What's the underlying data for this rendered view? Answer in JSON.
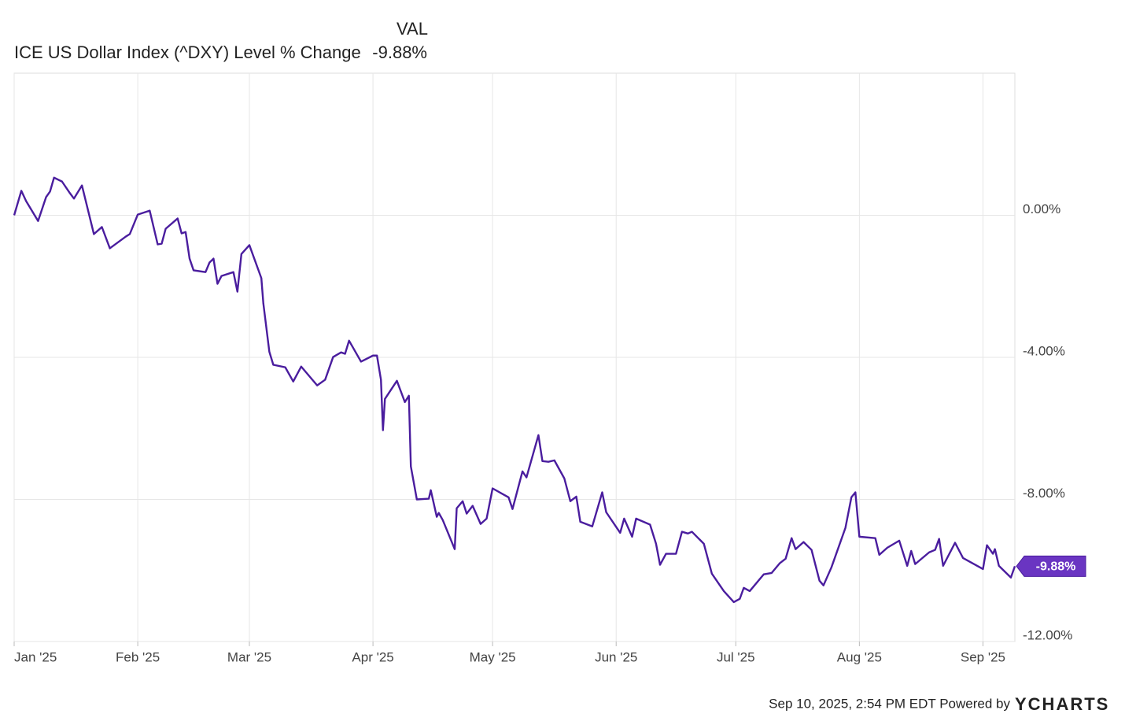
{
  "chart_data": {
    "type": "line",
    "column_header": "VAL",
    "footer": "Sep 10, 2025, 2:54 PM EDT Powered by",
    "brand": "YCHARTS",
    "series": [
      {
        "name": "ICE US Dollar Index (^DXY) Level % Change",
        "color": "#4a1d9e",
        "last_label": "-9.88%",
        "x": [
          0,
          1.8,
          3,
          6,
          8,
          9,
          10,
          12,
          14,
          15,
          17,
          20,
          22,
          24,
          28,
          29,
          31,
          34,
          36,
          37,
          38,
          41,
          42,
          43,
          44,
          45,
          48,
          49,
          50,
          51,
          52,
          55,
          56,
          57,
          59,
          62,
          62.5,
          64,
          65,
          68,
          70,
          72,
          76,
          78,
          80,
          82,
          83,
          84,
          87,
          90,
          91,
          92,
          92.5,
          93,
          96,
          98,
          99,
          99.5,
          101,
          104,
          104.5,
          106,
          106.5,
          107.5,
          110.5,
          111,
          112.5,
          113.5,
          115,
          117,
          118.5,
          120,
          124,
          125,
          127.5,
          128.5,
          131.5,
          132.5,
          134,
          135.5,
          138,
          139.5,
          141,
          142,
          145,
          147.5,
          148.5,
          152,
          153,
          155,
          156,
          159.5,
          161,
          162,
          163.5,
          166,
          167.5,
          169,
          170,
          173,
          175,
          178,
          180.5,
          182,
          183,
          184.5,
          188,
          190,
          192,
          193.5,
          195,
          196,
          198,
          200,
          202,
          203,
          205,
          208.5,
          210,
          211,
          212,
          216,
          217,
          219,
          222,
          224,
          225,
          226,
          229.5,
          231,
          232,
          233,
          236,
          238,
          243,
          244,
          245.5,
          246,
          247,
          250,
          251
        ],
        "values": [
          0,
          0.69,
          0.4,
          -0.16,
          0.51,
          0.67,
          1.06,
          0.95,
          0.62,
          0.47,
          0.84,
          -0.53,
          -0.33,
          -0.93,
          -0.6,
          -0.53,
          0.02,
          0.13,
          -0.82,
          -0.8,
          -0.38,
          -0.09,
          -0.51,
          -0.47,
          -1.22,
          -1.55,
          -1.6,
          -1.33,
          -1.22,
          -1.93,
          -1.71,
          -1.6,
          -2.15,
          -1.09,
          -0.84,
          -1.77,
          -2.48,
          -3.84,
          -4.21,
          -4.28,
          -4.68,
          -4.26,
          -4.79,
          -4.63,
          -3.99,
          -3.86,
          -3.9,
          -3.53,
          -4.12,
          -3.95,
          -3.95,
          -4.63,
          -6.05,
          -5.17,
          -4.66,
          -5.26,
          -5.08,
          -7.07,
          -8.0,
          -7.98,
          -7.74,
          -8.49,
          -8.38,
          -8.58,
          -9.4,
          -8.25,
          -8.05,
          -8.4,
          -8.18,
          -8.69,
          -8.54,
          -7.69,
          -7.94,
          -8.27,
          -7.21,
          -7.38,
          -6.19,
          -6.92,
          -6.94,
          -6.9,
          -7.41,
          -8.05,
          -7.92,
          -8.63,
          -8.76,
          -7.8,
          -8.36,
          -8.94,
          -8.54,
          -9.05,
          -8.54,
          -8.71,
          -9.25,
          -9.84,
          -9.53,
          -9.53,
          -8.91,
          -8.96,
          -8.91,
          -9.25,
          -10.09,
          -10.58,
          -10.89,
          -10.8,
          -10.49,
          -10.58,
          -10.11,
          -10.07,
          -9.8,
          -9.67,
          -9.09,
          -9.4,
          -9.2,
          -9.42,
          -10.29,
          -10.42,
          -9.91,
          -8.8,
          -7.94,
          -7.8,
          -9.05,
          -9.09,
          -9.56,
          -9.36,
          -9.16,
          -9.87,
          -9.45,
          -9.82,
          -9.49,
          -9.42,
          -9.11,
          -9.87,
          -9.22,
          -9.65,
          -9.96,
          -9.29,
          -9.53,
          -9.4,
          -9.87,
          -10.2,
          -9.88
        ]
      }
    ],
    "xlim": [
      0,
      251
    ],
    "xticks": [
      {
        "value": 0,
        "label": "Jan '25"
      },
      {
        "value": 31,
        "label": "Feb '25"
      },
      {
        "value": 59,
        "label": "Mar '25"
      },
      {
        "value": 90,
        "label": "Apr '25"
      },
      {
        "value": 120,
        "label": "May '25"
      },
      {
        "value": 151,
        "label": "Jun '25"
      },
      {
        "value": 181,
        "label": "Jul '25"
      },
      {
        "value": 212,
        "label": "Aug '25"
      },
      {
        "value": 243,
        "label": "Sep '25"
      }
    ],
    "ylim": [
      -12,
      4
    ],
    "yticks": [
      {
        "value": 0,
        "label": "0.00%"
      },
      {
        "value": -4,
        "label": "-4.00%"
      },
      {
        "value": -8,
        "label": "-8.00%"
      },
      {
        "value": -12,
        "label": "-12.00%"
      }
    ],
    "grid": true
  }
}
